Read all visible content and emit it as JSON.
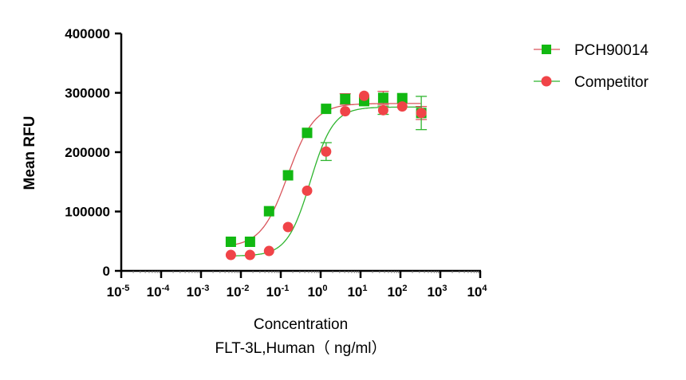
{
  "chart_data": {
    "type": "scatter",
    "title": "",
    "xlabel": "Concentration",
    "xlabel2": "FLT-3L,Human（ ng/ml）",
    "ylabel": "Mean RFU",
    "xscale": "log",
    "xlim": [
      1e-05,
      10000
    ],
    "ylim": [
      0,
      400000
    ],
    "x_tick_exponents": [
      "-5",
      "-4",
      "-3",
      "-2",
      "-1",
      "0",
      "1",
      "2",
      "3",
      "4"
    ],
    "y_ticks": [
      "0",
      "100000",
      "200000",
      "300000",
      "400000"
    ],
    "y_tick_values": [
      0,
      100000,
      200000,
      300000,
      400000
    ],
    "legend_position": "top-right",
    "x": [
      0.0056,
      0.0169,
      0.0508,
      0.152,
      0.457,
      1.37,
      4.12,
      12.3,
      37.0,
      111,
      333
    ],
    "series": [
      {
        "name": "PCH90014",
        "marker": "square",
        "marker_color": "#12b812",
        "fit_color": "#d9545a",
        "values": [
          49000,
          49000,
          100500,
          161000,
          232500,
          273000,
          289500,
          286000,
          291500,
          291000,
          266000
        ],
        "errors": [
          0,
          0,
          0,
          0,
          0,
          0,
          9000,
          0,
          11000,
          0,
          11000
        ],
        "fit": {
          "bottom": 40000,
          "top": 282000,
          "ec50": 0.15,
          "hill": 1.3
        }
      },
      {
        "name": "Competitor",
        "marker": "circle",
        "marker_color": "#f04448",
        "fit_color": "#2fb52f",
        "values": [
          26800,
          26800,
          33500,
          73800,
          135000,
          201000,
          269000,
          295000,
          270700,
          277000,
          266000
        ],
        "errors": [
          0,
          0,
          0,
          0,
          0,
          15000,
          0,
          0,
          7000,
          0,
          28000
        ],
        "fit": {
          "bottom": 25000,
          "top": 276000,
          "ec50": 0.55,
          "hill": 1.5
        }
      }
    ]
  }
}
